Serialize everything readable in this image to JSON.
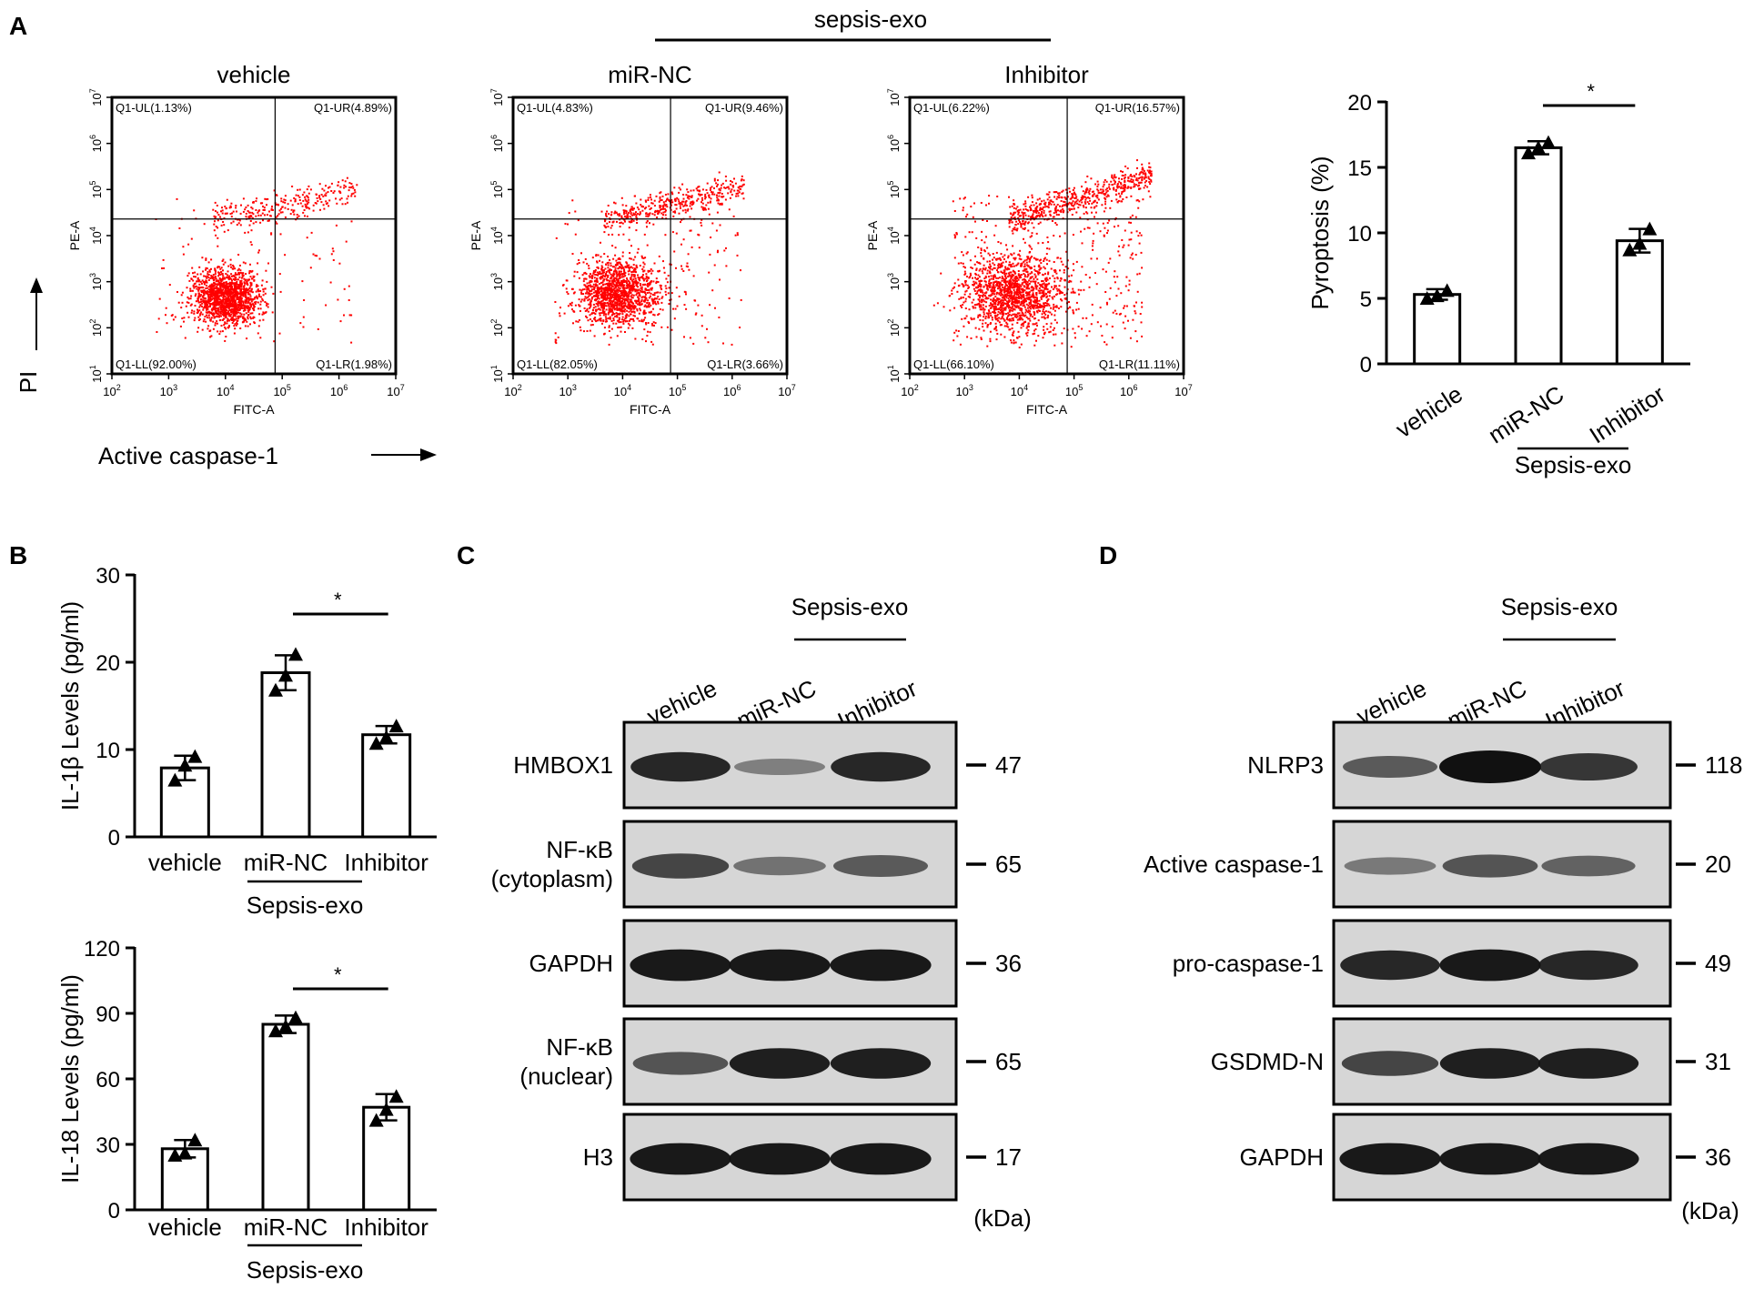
{
  "colors": {
    "dot": "#ff0000",
    "ink": "#000000",
    "band": "#111111",
    "blot_bg": "#d6d6d6"
  },
  "panel_a": {
    "letter": "A",
    "group_label": "sepsis-exo",
    "y_axis_label": "PI",
    "x_axis_label": "Active caspase-1",
    "flow_x_title": "FITC-A",
    "flow_y_title": "PE-A",
    "flow_ticks_y": [
      "10",
      "10",
      "10",
      "10",
      "10",
      "10"
    ],
    "flow_ticks_x": [
      "10",
      "10",
      "10",
      "10",
      "10",
      "10"
    ],
    "flow_tick_exps": [
      "2",
      "3",
      "4",
      "5",
      "6",
      "7"
    ],
    "flow_ytick_exps": [
      "1",
      "2",
      "3",
      "4",
      "5",
      "6",
      "7"
    ],
    "plots": [
      {
        "title": "vehicle",
        "UL": "Q1-UL(1.13%)",
        "UR": "Q1-UR(4.89%)",
        "LL": "Q1-LL(92.00%)",
        "LR": "Q1-LR(1.98%)"
      },
      {
        "title": "miR-NC",
        "UL": "Q1-UL(4.83%)",
        "UR": "Q1-UR(9.46%)",
        "LL": "Q1-LL(82.05%)",
        "LR": "Q1-LR(3.66%)"
      },
      {
        "title": "Inhibitor",
        "UL": "Q1-UL(6.22%)",
        "UR": "Q1-UR(16.57%)",
        "LL": "Q1-LL(66.10%)",
        "LR": "Q1-LR(11.11%)"
      }
    ]
  },
  "panel_b": {
    "letter": "B",
    "group_label": "Sepsis-exo"
  },
  "panel_c": {
    "letter": "C",
    "group_label": "Sepsis-exo",
    "unit": "(kDa)",
    "lanes": [
      "vehicle",
      "miR-NC",
      "Inhibitor"
    ],
    "blots": [
      {
        "label": [
          "HMBOX1"
        ],
        "kda": "47",
        "intensity": [
          0.85,
          0.25,
          0.85
        ]
      },
      {
        "label": [
          "NF-κB",
          "(cytoplasm)"
        ],
        "kda": "65",
        "intensity": [
          0.65,
          0.35,
          0.5
        ]
      },
      {
        "label": [
          "GAPDH"
        ],
        "kda": "36",
        "intensity": [
          0.95,
          0.95,
          0.95
        ]
      },
      {
        "label": [
          "NF-κB",
          "(nuclear)"
        ],
        "kda": "65",
        "intensity": [
          0.55,
          0.9,
          0.9
        ]
      },
      {
        "label": [
          "H3"
        ],
        "kda": "17",
        "intensity": [
          0.95,
          0.95,
          0.95
        ]
      }
    ]
  },
  "panel_d": {
    "letter": "D",
    "group_label": "Sepsis-exo",
    "unit": "(kDa)",
    "lanes": [
      "vehicle",
      "miR-NC",
      "Inhibitor"
    ],
    "blots": [
      {
        "label": [
          "NLRP3"
        ],
        "kda": "118",
        "intensity": [
          0.5,
          1.0,
          0.75
        ]
      },
      {
        "label": [
          "Active caspase-1"
        ],
        "kda": "20",
        "intensity": [
          0.3,
          0.55,
          0.45
        ]
      },
      {
        "label": [
          "pro-caspase-1"
        ],
        "kda": "49",
        "intensity": [
          0.85,
          0.95,
          0.85
        ]
      },
      {
        "label": [
          "GSDMD-N"
        ],
        "kda": "31",
        "intensity": [
          0.65,
          0.9,
          0.9
        ]
      },
      {
        "label": [
          "GAPDH"
        ],
        "kda": "36",
        "intensity": [
          0.95,
          0.95,
          0.95
        ]
      }
    ]
  },
  "chart_data": [
    {
      "type": "bar",
      "categories": [
        "vehicle",
        "miR-NC",
        "Inhibitor"
      ],
      "values": [
        5.3,
        16.5,
        9.4
      ],
      "errors": [
        0.4,
        0.5,
        0.9
      ],
      "points": [
        [
          5.0,
          5.2,
          5.6
        ],
        [
          16.1,
          16.5,
          16.9
        ],
        [
          8.7,
          9.2,
          10.3
        ]
      ],
      "title": "",
      "xlabel": "",
      "ylabel": "Pyroptosis (%)",
      "ylim": [
        0,
        20
      ],
      "yticks": [
        0,
        5,
        10,
        15,
        20
      ],
      "group_label": "Sepsis-exo",
      "significance": "*",
      "rotated_labels": true
    },
    {
      "type": "bar",
      "categories": [
        "vehicle",
        "miR-NC",
        "Inhibitor"
      ],
      "values": [
        7.9,
        18.8,
        11.7
      ],
      "errors": [
        1.4,
        2.0,
        1.0
      ],
      "points": [
        [
          6.5,
          8.2,
          9.2
        ],
        [
          16.8,
          18.5,
          20.9
        ],
        [
          10.7,
          11.4,
          12.7
        ]
      ],
      "title": "",
      "xlabel": "",
      "ylabel": "IL-1β Levels (pg/ml)",
      "ylim": [
        0,
        30
      ],
      "yticks": [
        0,
        10,
        20,
        30
      ],
      "group_label": "Sepsis-exo",
      "significance": "*",
      "rotated_labels": false
    },
    {
      "type": "bar",
      "categories": [
        "vehicle",
        "miR-NC",
        "Inhibitor"
      ],
      "values": [
        28,
        85,
        47
      ],
      "errors": [
        4,
        4,
        6
      ],
      "points": [
        [
          25,
          26,
          32
        ],
        [
          82,
          84,
          88
        ],
        [
          41,
          46,
          52
        ]
      ],
      "title": "",
      "xlabel": "",
      "ylabel": "IL-18 Levels (pg/ml)",
      "ylim": [
        0,
        120
      ],
      "yticks": [
        0,
        30,
        60,
        90,
        120
      ],
      "group_label": "Sepsis-exo",
      "significance": "*",
      "rotated_labels": false
    }
  ]
}
